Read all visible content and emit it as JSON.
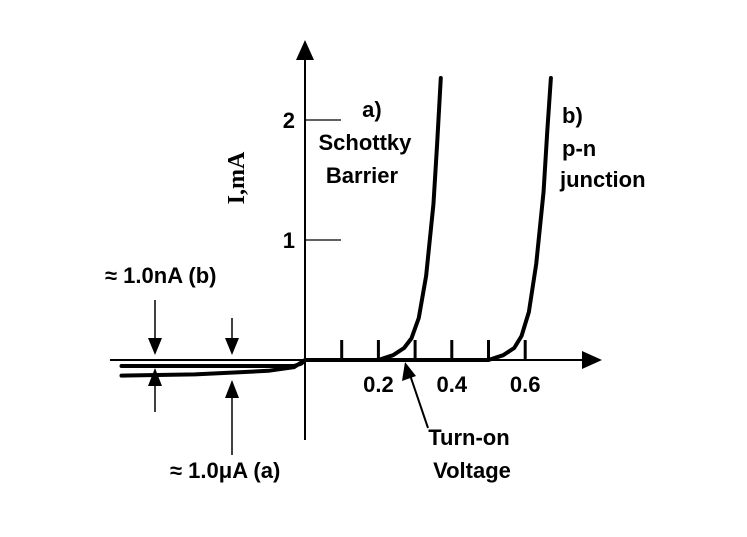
{
  "chart_data": {
    "type": "line",
    "title": "",
    "xlabel": "",
    "ylabel": "I,mA",
    "xlim": [
      -0.55,
      0.85
    ],
    "ylim": [
      -0.4,
      2.5
    ],
    "x_ticks": [
      0.1,
      0.2,
      0.3,
      0.4,
      0.5,
      0.6
    ],
    "x_tick_labels": [
      "0.2",
      "0.4",
      "0.6"
    ],
    "x_tick_label_values": [
      0.2,
      0.4,
      0.6
    ],
    "y_ticks": [
      1,
      2
    ],
    "y_tick_labels": [
      "1",
      "2"
    ],
    "grid": false,
    "series": [
      {
        "name": "a) Schottky Barrier",
        "name_lines": [
          "a)",
          "Schottky",
          "Barrier"
        ],
        "x": [
          -0.5,
          -0.3,
          -0.1,
          -0.03,
          -0.01,
          0.0,
          0.2,
          0.24,
          0.27,
          0.29,
          0.31,
          0.33,
          0.35,
          0.36,
          0.37
        ],
        "y": [
          -0.13,
          -0.12,
          -0.09,
          -0.06,
          -0.02,
          0.0,
          0.0,
          0.04,
          0.1,
          0.18,
          0.35,
          0.7,
          1.3,
          1.8,
          2.35
        ]
      },
      {
        "name": "b) p-n junction",
        "name_lines": [
          "b)",
          "p-n",
          "junction"
        ],
        "x": [
          -0.5,
          -0.03,
          -0.01,
          0.0,
          0.5,
          0.54,
          0.57,
          0.59,
          0.61,
          0.63,
          0.65,
          0.66,
          0.67
        ],
        "y": [
          -0.05,
          -0.05,
          -0.03,
          0.0,
          0.0,
          0.04,
          0.1,
          0.2,
          0.4,
          0.8,
          1.4,
          1.9,
          2.35
        ]
      }
    ],
    "annotations": [
      {
        "name": "reverse-current-b",
        "text": "≈ 1.0nA (b)"
      },
      {
        "name": "reverse-current-a",
        "text": "≈ 1.0μA (a)"
      },
      {
        "name": "turn-on-voltage",
        "text_lines": [
          "Turn-on",
          "Voltage"
        ]
      }
    ]
  }
}
